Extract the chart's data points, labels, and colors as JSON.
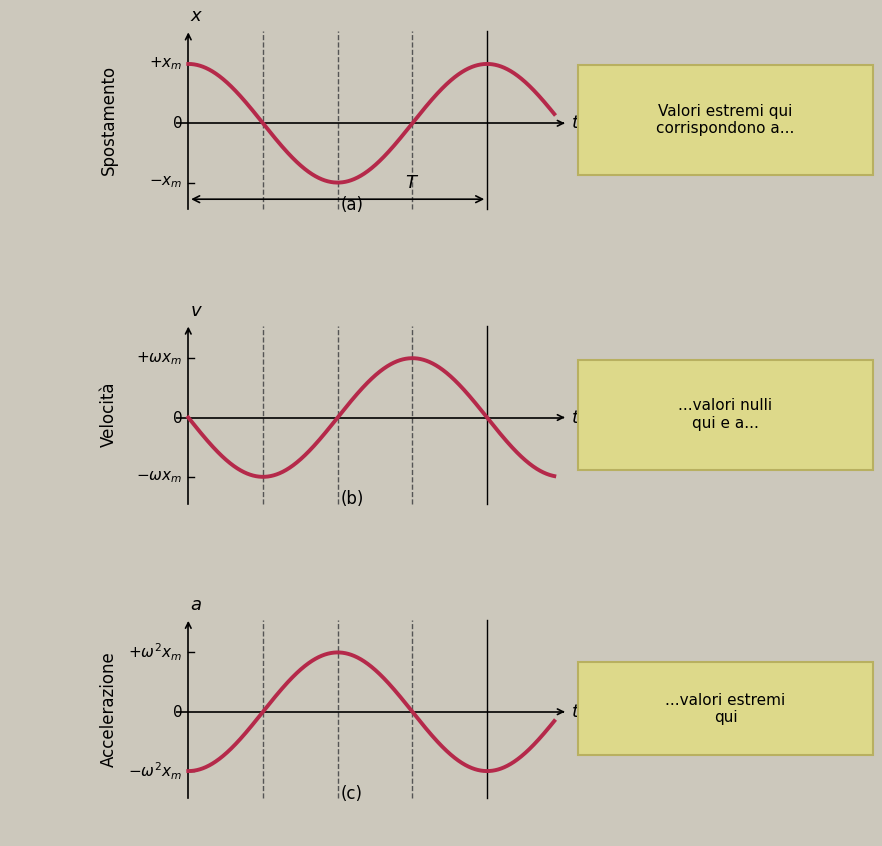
{
  "background_color": "#ccc8bc",
  "curve_color": "#b5294a",
  "curve_linewidth": 2.8,
  "fig_width": 8.82,
  "fig_height": 8.46,
  "panels": [
    {
      "label": "(a)",
      "ylabel_rot": "Spostamento",
      "yaxis_label": "x",
      "pos_label": "+x_m",
      "neg_label": "-x_m"
    },
    {
      "label": "(b)",
      "ylabel_rot": "Velocità",
      "yaxis_label": "v",
      "pos_label": "+\\omega x_m",
      "neg_label": "-\\omega x_m"
    },
    {
      "label": "(c)",
      "ylabel_rot": "Accelerazione",
      "yaxis_label": "a",
      "pos_label": "+\\omega^2 x_m",
      "neg_label": "-\\omega^2 x_m"
    }
  ],
  "box_texts": [
    "Valori estremi qui\ncorrispondono a...",
    "...valori nulli\nqui e a...",
    "...valori estremi\nqui"
  ],
  "dashed_line_color": "#555555",
  "box_color": "#ddd98a",
  "box_edge": "#b8b060"
}
